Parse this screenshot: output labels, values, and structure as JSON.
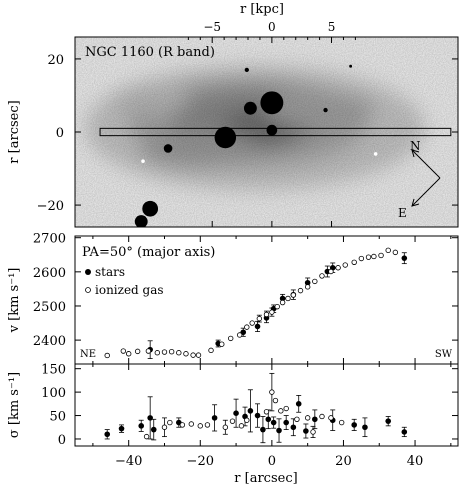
{
  "chart_data": [
    {
      "type": "image",
      "panel": "top",
      "annotation": "NGC 1160 (R band)",
      "xlabel_top": "r [kpc]",
      "x_ticks_top": [
        -5,
        0,
        5
      ],
      "x_ticks_top_labels": [
        "−5",
        "0",
        "5"
      ],
      "ylabel": "r [arcsec]",
      "y_ticks": [
        -20,
        0,
        20
      ],
      "y_ticks_labels": [
        "−20",
        "0",
        "20"
      ],
      "xlim": [
        -55,
        52
      ],
      "ylim": [
        -26,
        26
      ],
      "kpc_per_arcsec": 0.3,
      "slit": {
        "x_range": [
          -48,
          50
        ],
        "y_center": 0,
        "half_width": 1
      },
      "compass": {
        "n_label": "N",
        "e_label": "E"
      },
      "sources": [
        {
          "x": 0,
          "y": 8,
          "r": 3.2
        },
        {
          "x": -6,
          "y": 6.5,
          "r": 1.8
        },
        {
          "x": -13,
          "y": -1.5,
          "r": 3.0
        },
        {
          "x": 0,
          "y": 0.5,
          "r": 1.5
        },
        {
          "x": -29,
          "y": -4.5,
          "r": 1.2
        },
        {
          "x": -34,
          "y": -21,
          "r": 2.2
        },
        {
          "x": -36.5,
          "y": -24.5,
          "r": 1.8
        },
        {
          "x": 15,
          "y": 6,
          "r": 0.6
        },
        {
          "x": -7,
          "y": 17,
          "r": 0.6
        },
        {
          "x": 22,
          "y": 18,
          "r": 0.4
        }
      ],
      "white_spots": [
        {
          "x": -36,
          "y": -8
        },
        {
          "x": 29,
          "y": -6
        }
      ]
    },
    {
      "type": "scatter",
      "panel": "middle",
      "annotation": "PA=50° (major axis)",
      "ylabel": "v [km s⁻¹]",
      "y_ticks": [
        2400,
        2500,
        2600,
        2700
      ],
      "ylim": [
        2330,
        2705
      ],
      "xlim": [
        -55,
        52
      ],
      "corner_left": "NE",
      "corner_right": "SW",
      "series": [
        {
          "name": "stars",
          "marker": "filled",
          "x": [
            -34,
            -15,
            -8,
            -4,
            -1.5,
            0.5,
            3,
            6,
            10,
            15.5,
            17,
            37
          ],
          "y": [
            2372,
            2390,
            2423,
            2440,
            2465,
            2492,
            2522,
            2533,
            2568,
            2601,
            2612,
            2640
          ],
          "err": [
            26,
            10,
            12,
            15,
            14,
            11,
            12,
            14,
            14,
            16,
            14,
            16
          ]
        },
        {
          "name": "ionized gas",
          "marker": "open",
          "x": [
            -46,
            -41.5,
            -40,
            -37.5,
            -34.5,
            -32,
            -30,
            -28,
            -26,
            -24,
            -22,
            -20.5,
            -17,
            -14,
            -11.5,
            -9,
            -7,
            -5.5,
            -3.5,
            -1.5,
            0,
            1.5,
            3,
            4.5,
            6,
            8,
            10,
            12,
            14,
            16.5,
            18.5,
            20.5,
            23,
            25,
            27,
            28.5,
            30.5,
            32.5,
            34.5
          ],
          "y": [
            2355,
            2368,
            2360,
            2367,
            2368,
            2363,
            2365,
            2366,
            2363,
            2360,
            2356,
            2356,
            2370,
            2388,
            2405,
            2415,
            2438,
            2450,
            2463,
            2475,
            2482,
            2498,
            2510,
            2522,
            2532,
            2545,
            2556,
            2572,
            2588,
            2601,
            2612,
            2620,
            2628,
            2639,
            2643,
            2645,
            2648,
            2663,
            2657
          ],
          "err": [
            0,
            0,
            0,
            0,
            0,
            0,
            0,
            0,
            0,
            0,
            0,
            0,
            0,
            0,
            0,
            0,
            0,
            0,
            10,
            10,
            12,
            0,
            0,
            0,
            0,
            0,
            0,
            0,
            0,
            0,
            0,
            0,
            0,
            0,
            0,
            0,
            0,
            0,
            0
          ]
        }
      ]
    },
    {
      "type": "scatter",
      "panel": "bottom",
      "ylabel": "σ [km s⁻¹]",
      "xlabel": "r [arcsec]",
      "x_ticks": [
        -40,
        -20,
        0,
        20,
        40
      ],
      "x_ticks_labels": [
        "−40",
        "−20",
        "0",
        "20",
        "40"
      ],
      "y_ticks": [
        0,
        50,
        100,
        150
      ],
      "ylim": [
        -15,
        160
      ],
      "xlim": [
        -55,
        52
      ],
      "series": [
        {
          "name": "stars",
          "marker": "filled",
          "x": [
            -46,
            -42,
            -36.5,
            -34,
            -33,
            -26,
            -16,
            -10,
            -7.5,
            -6,
            -4,
            -2.5,
            -1,
            0.5,
            2,
            4,
            6,
            7.5,
            9.5,
            12,
            17,
            23,
            26,
            32.5,
            37
          ],
          "y": [
            10,
            22,
            28,
            45,
            20,
            35,
            45,
            55,
            48,
            60,
            50,
            20,
            42,
            35,
            18,
            35,
            25,
            75,
            17,
            42,
            40,
            30,
            25,
            38,
            15
          ],
          "err": [
            10,
            8,
            12,
            45,
            22,
            10,
            28,
            30,
            20,
            45,
            25,
            28,
            20,
            12,
            25,
            15,
            18,
            18,
            15,
            20,
            22,
            12,
            20,
            10,
            10
          ]
        },
        {
          "name": "ionized gas",
          "marker": "open",
          "x": [
            -35,
            -30,
            -28.5,
            -25,
            -22.5,
            -20,
            -18,
            -13,
            -11,
            -8.5,
            -7,
            -1.5,
            0,
            1,
            2.5,
            4,
            7,
            10,
            11.5,
            14,
            16.5,
            19.5
          ],
          "y": [
            5,
            25,
            35,
            30,
            32,
            28,
            30,
            25,
            38,
            28,
            40,
            58,
            100,
            82,
            60,
            65,
            42,
            45,
            15,
            48,
            45,
            35
          ],
          "err": [
            0,
            20,
            0,
            0,
            0,
            0,
            0,
            15,
            0,
            0,
            0,
            0,
            40,
            0,
            0,
            0,
            0,
            0,
            12,
            0,
            0,
            0
          ]
        }
      ]
    }
  ]
}
